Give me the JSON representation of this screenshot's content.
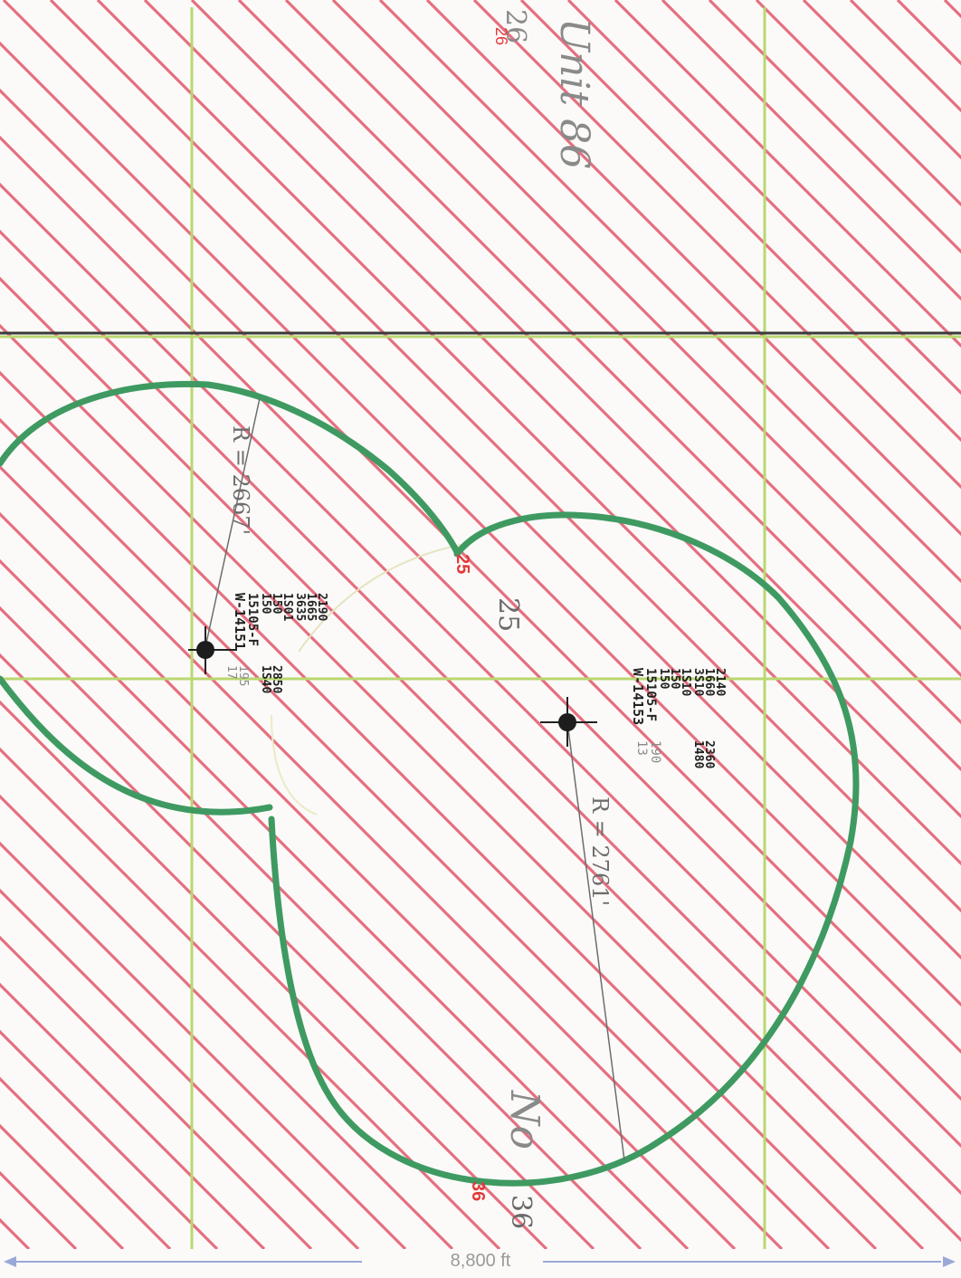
{
  "colors": {
    "hatch": "#e0566a",
    "grid_green": "#b9d870",
    "border_dark": "#3a3a3a",
    "boundary_green": "#3f9a62",
    "red_text": "#e23a3a",
    "pencil": "#8a8a8a",
    "ink": "#222222"
  },
  "labels": {
    "top_note": "Unit 86",
    "section_26_pencil": "26",
    "section_26_red": "26",
    "section_25_red": "25",
    "section_25_pencil": "25",
    "section_36_red": "36",
    "section_36_pencil": "36",
    "bottom_pencil_note": "No"
  },
  "well_upper": {
    "id": "W-14151",
    "stamp": "15105-F",
    "col1": [
      "150",
      "150",
      "1S01"
    ],
    "col2": [
      "3635",
      "1665",
      "2190"
    ],
    "col3": [
      "1S40",
      "2850"
    ],
    "right_note": [
      "195",
      "17"
    ],
    "radius_label": "R = 2667'"
  },
  "well_lower": {
    "id": "W-14153",
    "stamp": "15105-F",
    "col1": [
      "150",
      "150",
      "1S10"
    ],
    "col2": [
      "3S10",
      "1660",
      "2140"
    ],
    "col3": [
      "1480",
      "2360"
    ],
    "right_note": [
      "190",
      "13"
    ],
    "radius_label": "R = 2761'"
  },
  "scale": {
    "label": "8,800 ft"
  }
}
